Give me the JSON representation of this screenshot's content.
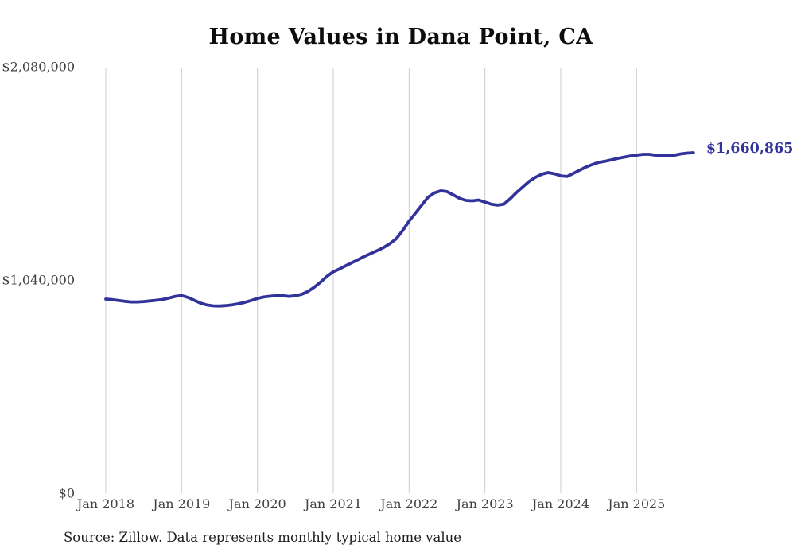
{
  "title": "Home Values in Dana Point, CA",
  "source_note": "Source: Zillow. Data represents monthly typical home value",
  "end_label": "$1,660,865",
  "colors": {
    "line": "#32329b",
    "end_label": "#32329b",
    "grid": "#cdcdcd",
    "title": "#0d0d0d",
    "axis_text": "#3f3f3f",
    "source_text": "#1c1c1c",
    "background": "#ffffff"
  },
  "chart_data": {
    "type": "line",
    "title": "Home Values in Dana Point, CA",
    "xlabel": "",
    "ylabel": "",
    "ylim": [
      0,
      2080000
    ],
    "grid": "vertical-only",
    "legend": "none",
    "x_tick_labels": [
      "Jan 2018",
      "Jan 2019",
      "Jan 2020",
      "Jan 2021",
      "Jan 2022",
      "Jan 2023",
      "Jan 2024",
      "Jan 2025"
    ],
    "y_ticks": [
      {
        "label": "$0",
        "value": 0
      },
      {
        "label": "$1,040,000",
        "value": 1040000
      },
      {
        "label": "$2,080,000",
        "value": 2080000
      }
    ],
    "start_month": "2018-01",
    "end_month": "2025-10",
    "frequency": "monthly",
    "final_value": 1660865,
    "final_value_label": "$1,660,865",
    "series": [
      {
        "name": "Typical home value",
        "color": "#32329b",
        "values": [
          947000,
          944000,
          940000,
          936000,
          933000,
          933000,
          935000,
          938000,
          941000,
          945000,
          952000,
          960000,
          964000,
          955000,
          941000,
          927000,
          918000,
          914000,
          913000,
          915000,
          919000,
          924000,
          931000,
          940000,
          950000,
          957000,
          961000,
          963000,
          963000,
          960000,
          963000,
          970000,
          984000,
          1005000,
          1030000,
          1058000,
          1080000,
          1094000,
          1110000,
          1125000,
          1140000,
          1156000,
          1170000,
          1184000,
          1199000,
          1218000,
          1242000,
          1282000,
          1327000,
          1366000,
          1405000,
          1444000,
          1465000,
          1475000,
          1471000,
          1455000,
          1438000,
          1428000,
          1426000,
          1430000,
          1420000,
          1410000,
          1405000,
          1410000,
          1436000,
          1467000,
          1494000,
          1521000,
          1541000,
          1556000,
          1564000,
          1558000,
          1548000,
          1545000,
          1560000,
          1576000,
          1591000,
          1603000,
          1614000,
          1619000,
          1626000,
          1633000,
          1639000,
          1645000,
          1649000,
          1653000,
          1653000,
          1649000,
          1646000,
          1646000,
          1649000,
          1655000,
          1659000,
          1660865
        ]
      }
    ]
  }
}
